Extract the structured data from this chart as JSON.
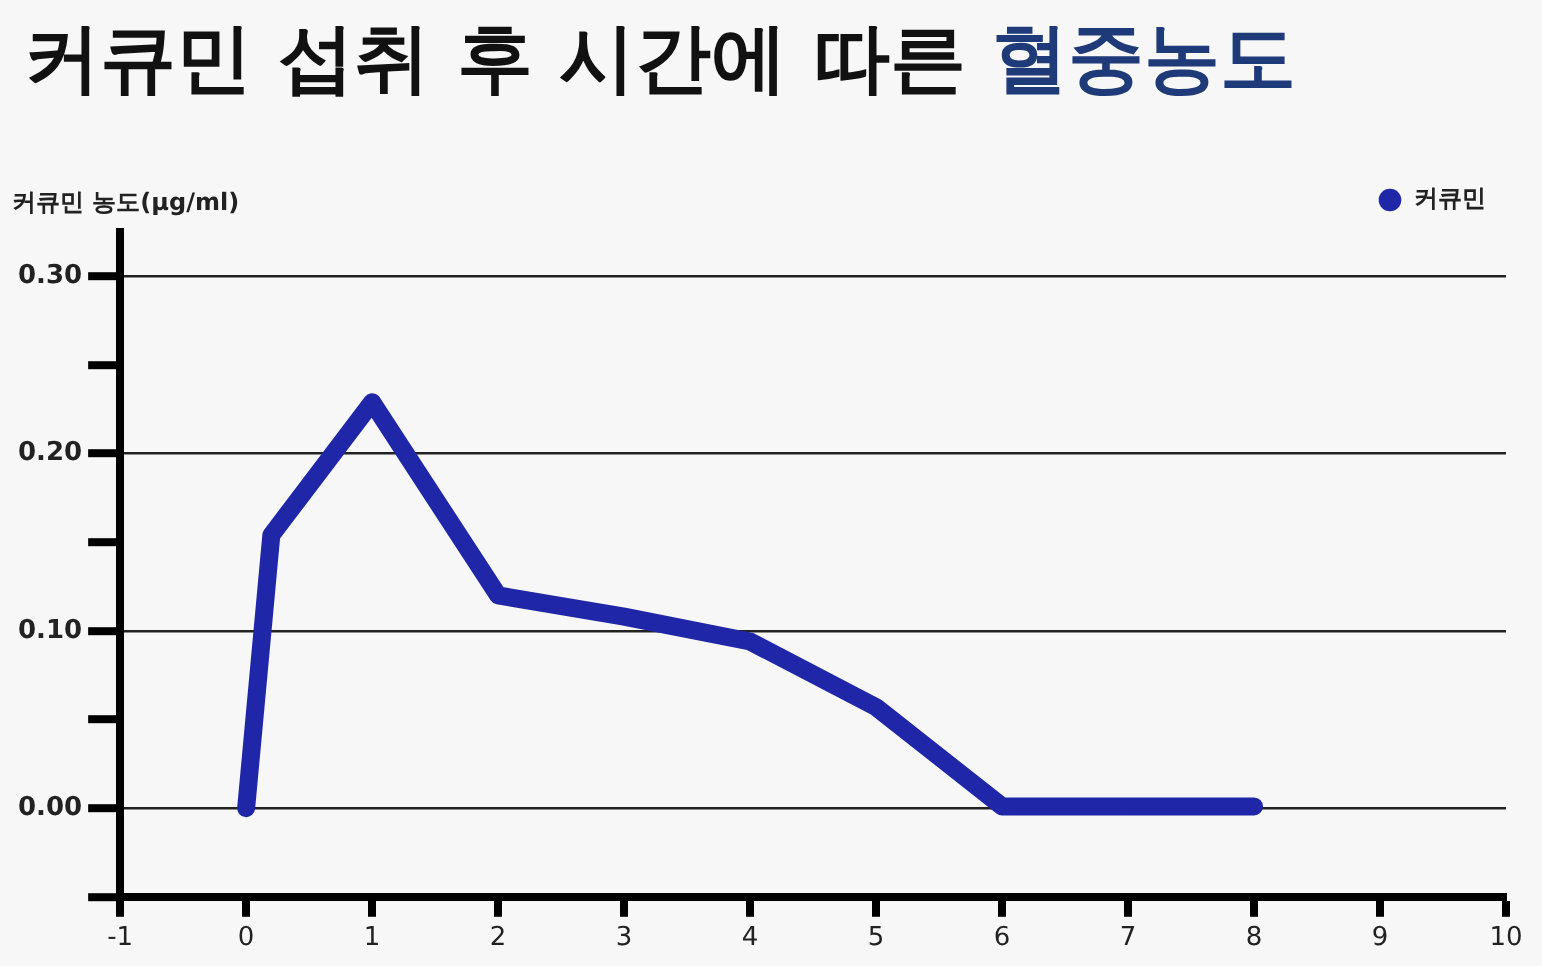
{
  "chart_data": {
    "type": "line",
    "title": "커큐민 섭취 후 시간에 따른 혈중농도",
    "ylabel": "커큐민 농도(μg/ml)",
    "x": [
      0,
      0.2,
      1,
      2,
      3,
      4,
      5,
      6,
      7,
      8
    ],
    "series": [
      {
        "name": "커큐민",
        "color": "#1f27a8",
        "values": [
          0,
          0.154,
          0.229,
          0.12,
          0.108,
          0.094,
          0.057,
          0.001,
          0.001,
          0.001
        ]
      }
    ],
    "xlim": [
      -1,
      10
    ],
    "xticks": [
      -1,
      0,
      1,
      2,
      3,
      4,
      5,
      6,
      7,
      8,
      9,
      10
    ],
    "ylim": [
      -0.05,
      0.325
    ],
    "yticks": [
      {
        "value": -0.05,
        "label": null
      },
      {
        "value": 0,
        "label": "0.00"
      },
      {
        "value": 0.05,
        "label": null
      },
      {
        "value": 0.1,
        "label": "0.10"
      },
      {
        "value": 0.15,
        "label": null
      },
      {
        "value": 0.2,
        "label": "0.20"
      },
      {
        "value": 0.25,
        "label": null
      },
      {
        "value": 0.3,
        "label": "0.30"
      }
    ],
    "grid": "y",
    "legend": "top right",
    "marker": "circle",
    "line_style": "solid"
  }
}
